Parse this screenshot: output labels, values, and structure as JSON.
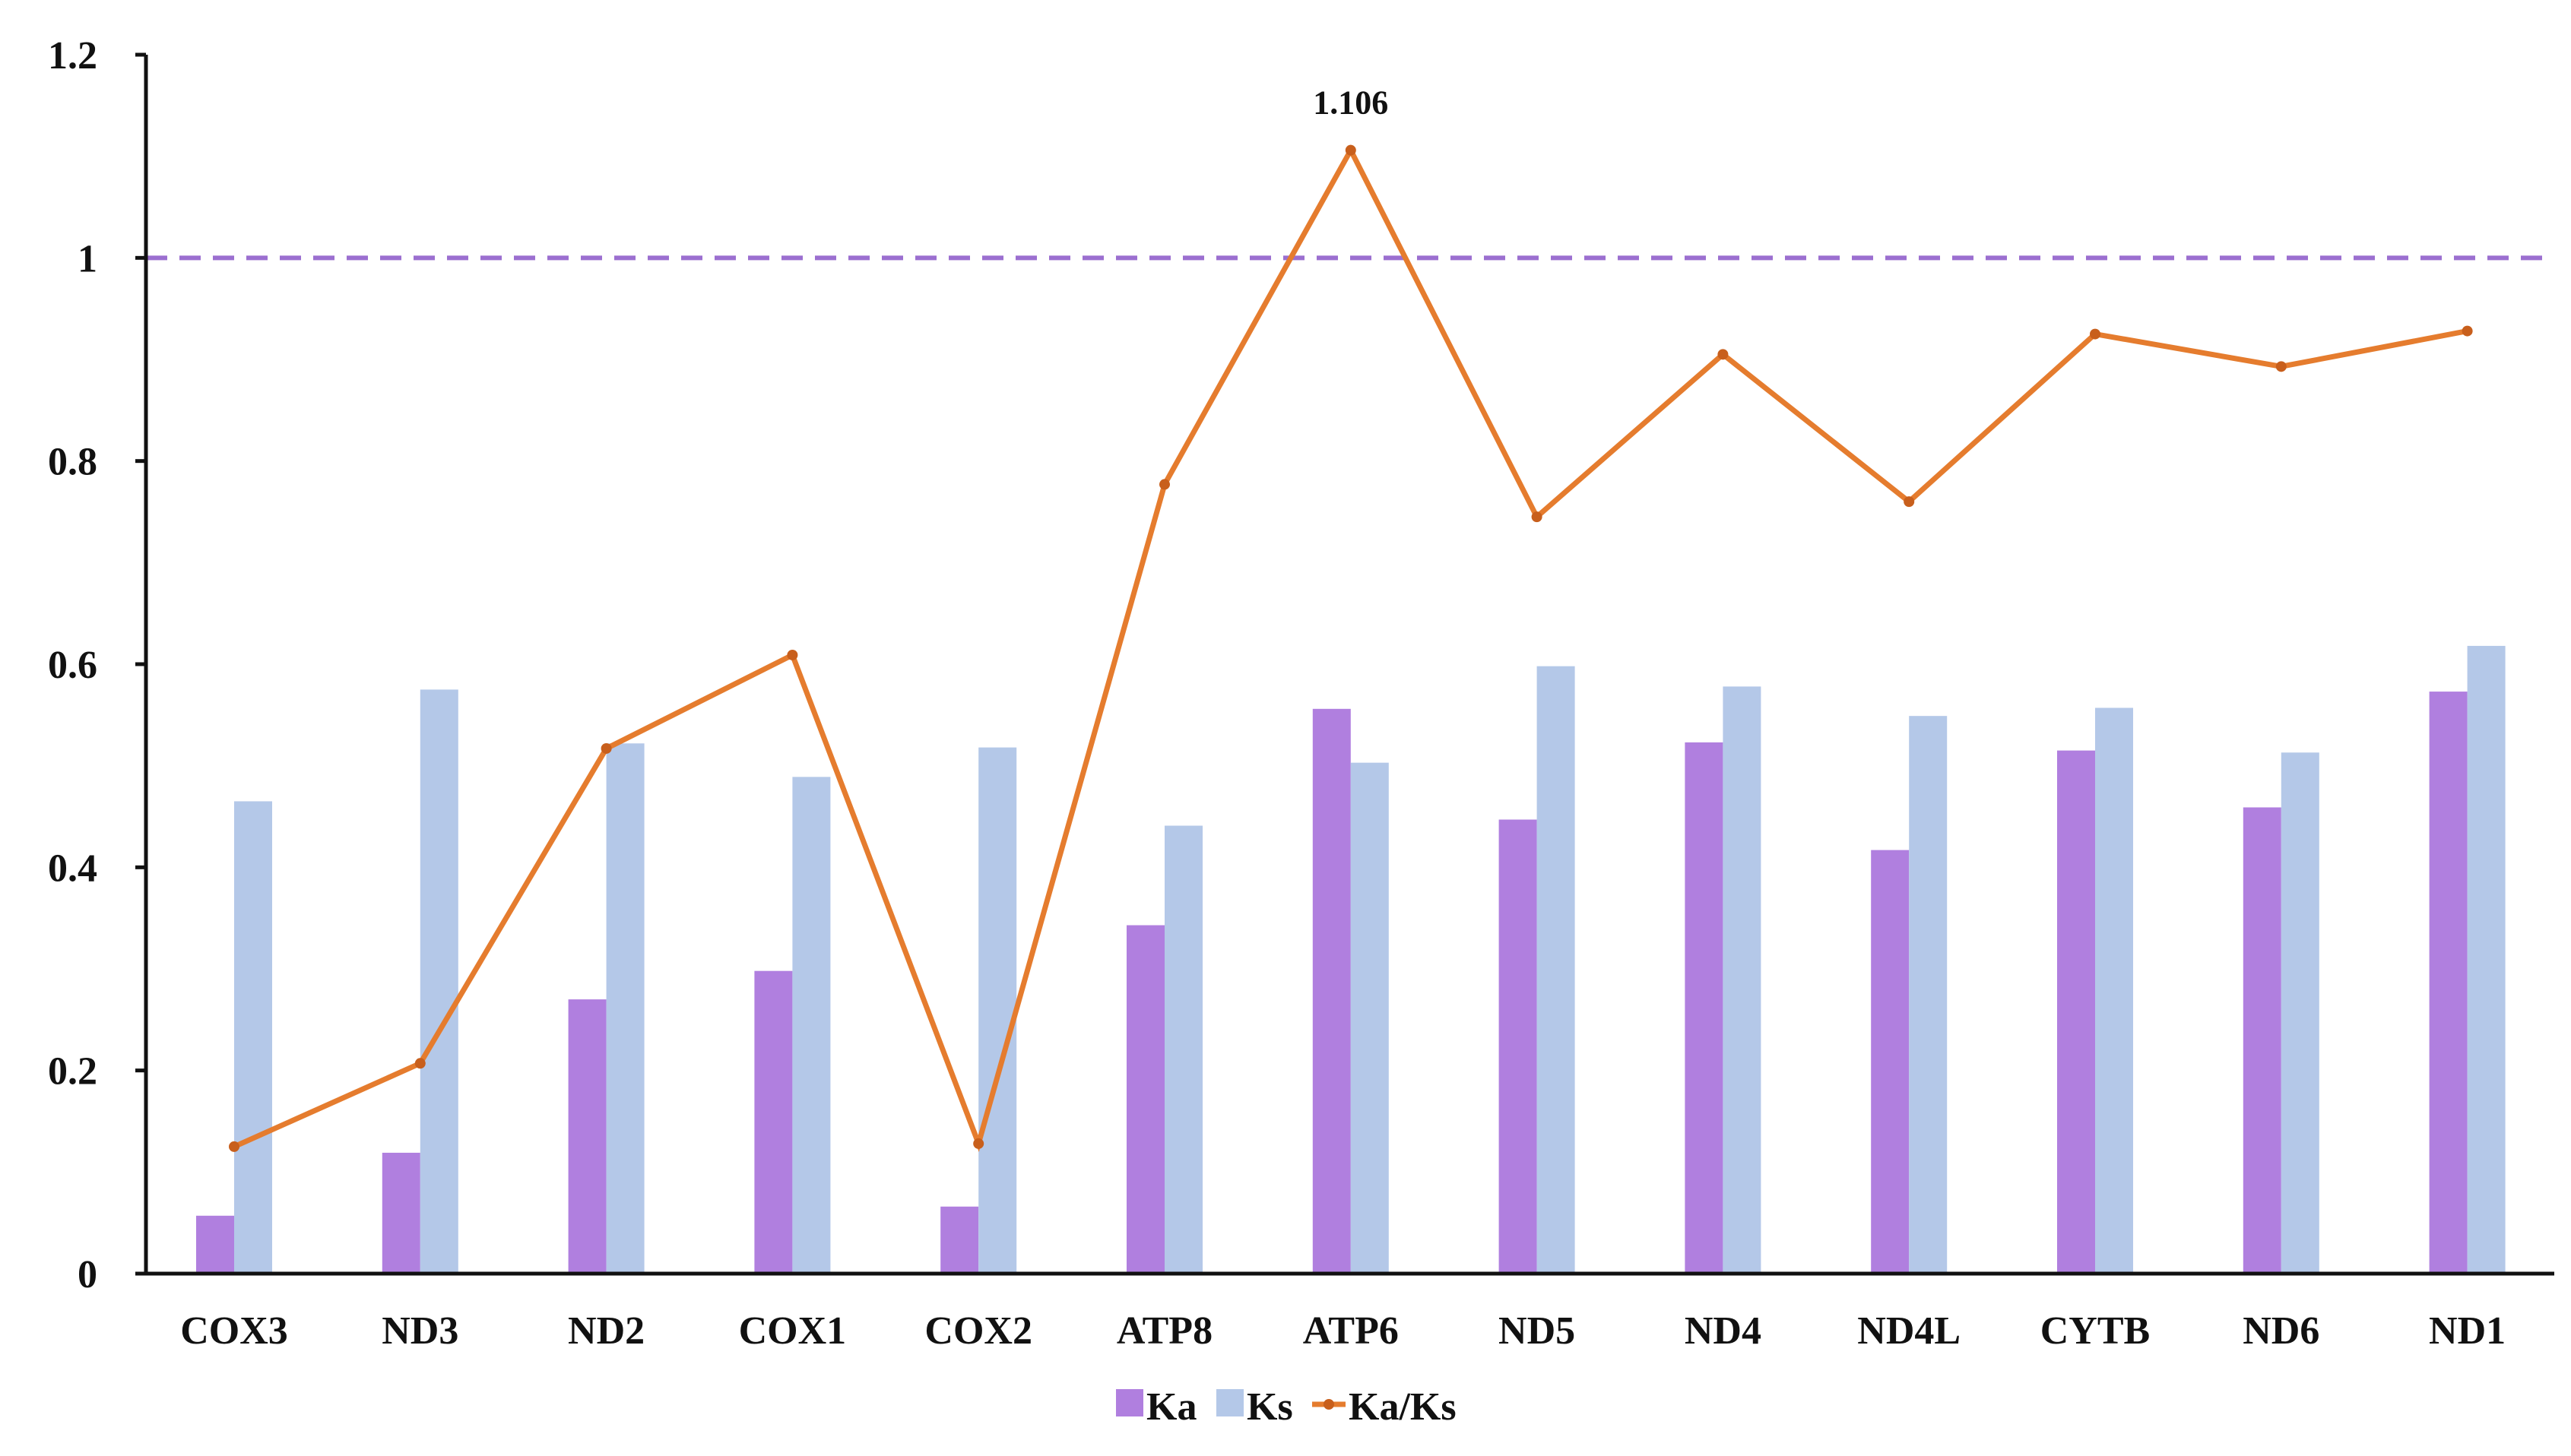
{
  "chart_data": {
    "type": "bar+line",
    "title": "",
    "xlabel": "",
    "ylabel": "",
    "ylim": [
      0,
      1.2
    ],
    "yticks": [
      0,
      0.2,
      0.4,
      0.6,
      0.8,
      1,
      1.2
    ],
    "ytick_labels": [
      "0",
      "0.2",
      "0.4",
      "0.6",
      "0.8",
      "1",
      "1.2"
    ],
    "grid": false,
    "categories": [
      "COX3",
      "ND3",
      "ND2",
      "COX1",
      "COX2",
      "ATP8",
      "ATP6",
      "ND5",
      "ND4",
      "ND4L",
      "CYTB",
      "ND6",
      "ND1"
    ],
    "series": [
      {
        "name": "Ka",
        "kind": "bar",
        "color": "#b07fdf",
        "values": [
          0.057,
          0.119,
          0.27,
          0.298,
          0.066,
          0.343,
          0.556,
          0.447,
          0.523,
          0.417,
          0.515,
          0.459,
          0.573
        ]
      },
      {
        "name": "Ks",
        "kind": "bar",
        "color": "#b4c8e8",
        "values": [
          0.465,
          0.575,
          0.522,
          0.489,
          0.518,
          0.441,
          0.503,
          0.598,
          0.578,
          0.549,
          0.557,
          0.513,
          0.618
        ]
      },
      {
        "name": "Ka/Ks",
        "kind": "line",
        "color": "#e57c2e",
        "values": [
          0.125,
          0.207,
          0.517,
          0.609,
          0.128,
          0.777,
          1.106,
          0.745,
          0.905,
          0.76,
          0.925,
          0.893,
          0.928
        ]
      }
    ],
    "reference_line": {
      "value": 1,
      "style": "dashed",
      "color": "#9b6fd0"
    },
    "annotations": [
      {
        "category": "ATP6",
        "series": "Ka/Ks",
        "text": "1.106"
      }
    ],
    "legend": {
      "position": "bottom-center",
      "entries": [
        "Ka",
        "Ks",
        "Ka/Ks"
      ]
    }
  }
}
